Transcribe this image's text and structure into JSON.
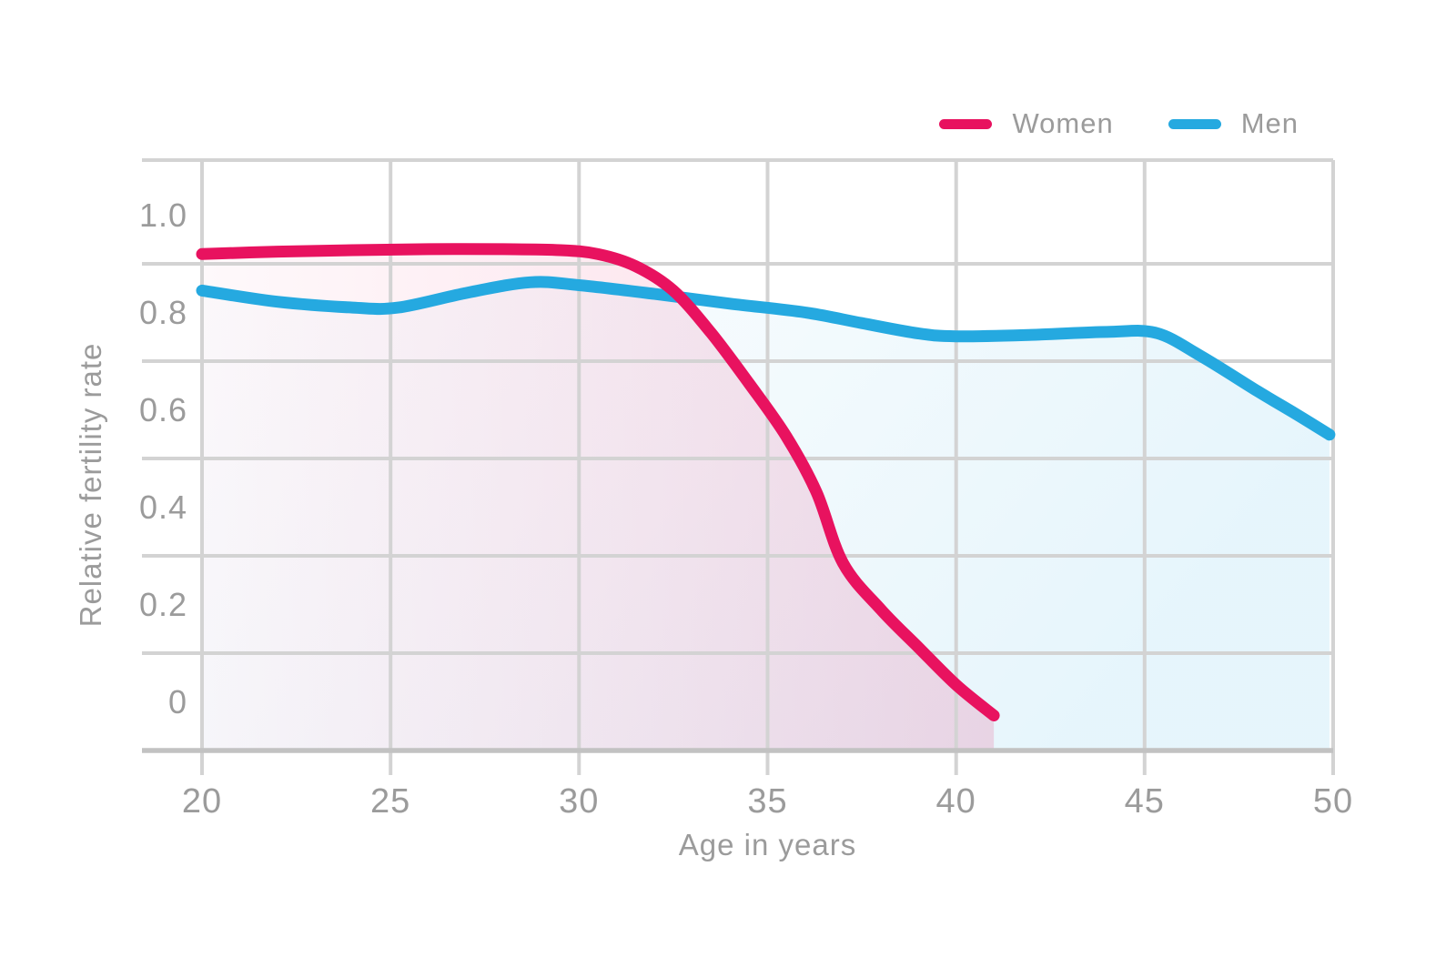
{
  "chart": {
    "background": "#ffffff",
    "text_color": "#9b9b9b",
    "grid_color": "#d3d3d3",
    "axis_color": "#c2c2c2"
  },
  "chart_data": {
    "type": "line",
    "title": "",
    "xlabel": "Age in years",
    "ylabel": "Relative fertility rate",
    "xlim": [
      20,
      50
    ],
    "ylim": [
      -0.1,
      1.113
    ],
    "x_ticks": [
      20,
      25,
      30,
      35,
      40,
      45,
      50
    ],
    "y_ticks": [
      0,
      0.2,
      0.4,
      0.6,
      0.8,
      1.0
    ],
    "y_tick_labels": [
      "0",
      "0.2",
      "0.4",
      "0.6",
      "0.8",
      "1.0"
    ],
    "y_gridlines": [
      0.9,
      0.7,
      0.5,
      0.3,
      0.1
    ],
    "grid": "on (horizontal gridlines offset half-step; value labels sit centered between gridlines)",
    "legend_position": "top-right",
    "series": [
      {
        "name": "Women",
        "color": "#e8125f",
        "area_fill": "left-to-right pink gradient under curve",
        "points": [
          [
            20,
            0.92
          ],
          [
            22,
            0.925
          ],
          [
            24,
            0.928
          ],
          [
            26,
            0.93
          ],
          [
            28,
            0.93
          ],
          [
            29.5,
            0.928
          ],
          [
            30.5,
            0.92
          ],
          [
            31.5,
            0.895
          ],
          [
            32.5,
            0.845
          ],
          [
            33.5,
            0.758
          ],
          [
            34.5,
            0.655
          ],
          [
            35.5,
            0.545
          ],
          [
            36.3,
            0.43
          ],
          [
            37,
            0.285
          ],
          [
            38,
            0.19
          ],
          [
            39,
            0.112
          ],
          [
            40,
            0.035
          ],
          [
            41,
            -0.028
          ]
        ]
      },
      {
        "name": "Men",
        "color": "#25a9e0",
        "area_fill": "left-to-right light blue gradient under curve",
        "points": [
          [
            20,
            0.845
          ],
          [
            22,
            0.822
          ],
          [
            24,
            0.81
          ],
          [
            25.2,
            0.81
          ],
          [
            27,
            0.84
          ],
          [
            28.7,
            0.862
          ],
          [
            30,
            0.856
          ],
          [
            32,
            0.838
          ],
          [
            34,
            0.818
          ],
          [
            36,
            0.8
          ],
          [
            37.5,
            0.778
          ],
          [
            39,
            0.757
          ],
          [
            40,
            0.751
          ],
          [
            42,
            0.754
          ],
          [
            44,
            0.76
          ],
          [
            45.3,
            0.758
          ],
          [
            46.5,
            0.71
          ],
          [
            48,
            0.638
          ],
          [
            49,
            0.592
          ],
          [
            49.9,
            0.549
          ]
        ]
      }
    ]
  }
}
